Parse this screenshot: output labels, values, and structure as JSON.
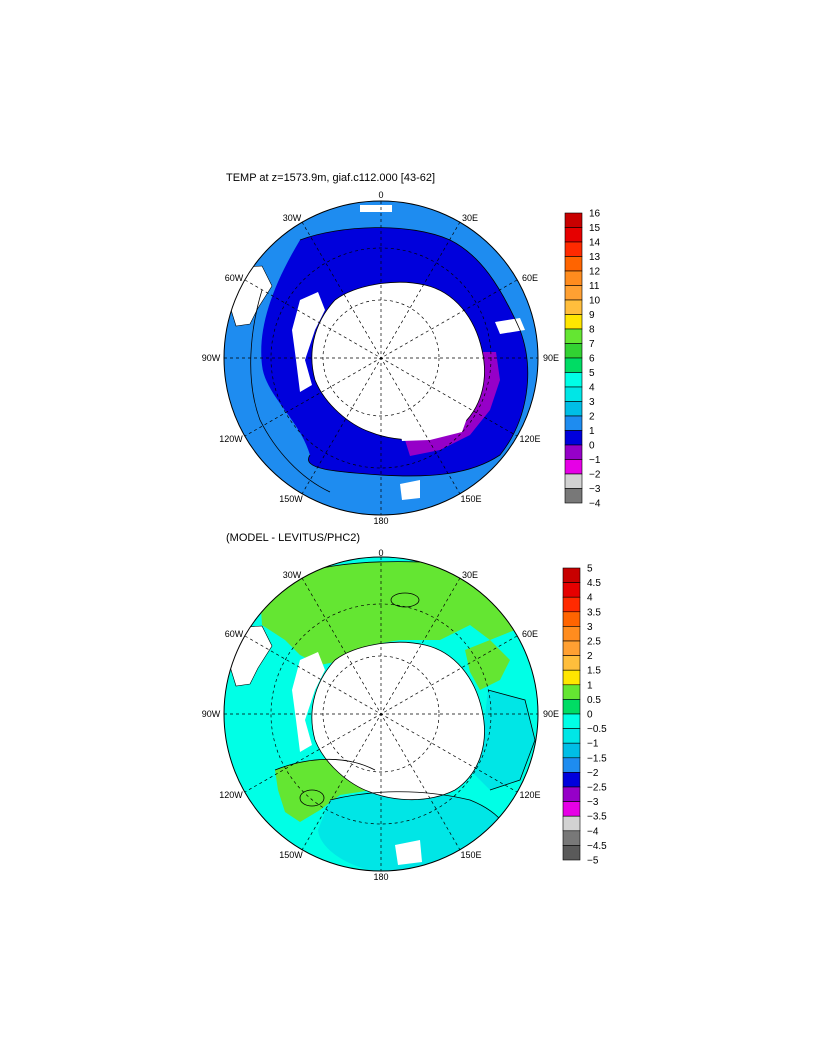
{
  "panels": [
    {
      "title": "TEMP at z=1573.9m, giaf.c112.000 [43-62]",
      "lon_labels": {
        "n": "0",
        "nne": "30E",
        "ene": "60E",
        "e": "90E",
        "ese": "120E",
        "sse": "150E",
        "s": "180",
        "ssw": "150W",
        "wsw": "120W",
        "w": "90W",
        "wnw": "60W",
        "nnw": "30W"
      },
      "colorbar": {
        "labels": [
          "16",
          "15",
          "14",
          "13",
          "12",
          "11",
          "10",
          "9",
          "8",
          "7",
          "6",
          "5",
          "4",
          "3",
          "2",
          "1",
          "0",
          "−1",
          "−2",
          "−3",
          "−4"
        ],
        "colors": [
          "#c80000",
          "#e60000",
          "#ff2a00",
          "#ff6400",
          "#ff8c1e",
          "#ffa032",
          "#ffbe3c",
          "#ffe600",
          "#64e632",
          "#32d232",
          "#00dc64",
          "#00ffe6",
          "#00e6e6",
          "#00bee6",
          "#1e8cf0",
          "#0000dc",
          "#9600c8",
          "#e600e6",
          "#d2d2d2",
          "#787878"
        ]
      }
    },
    {
      "title": "(MODEL - LEVITUS/PHC2)",
      "lon_labels": {
        "n": "0",
        "nne": "30E",
        "ene": "60E",
        "e": "90E",
        "ese": "120E",
        "sse": "150E",
        "s": "180",
        "ssw": "150W",
        "wsw": "120W",
        "w": "90W",
        "wnw": "60W",
        "nnw": "30W"
      },
      "colorbar": {
        "labels": [
          "5",
          "4.5",
          "4",
          "3.5",
          "3",
          "2.5",
          "2",
          "1.5",
          "1",
          "0.5",
          "0",
          "−0.5",
          "−1",
          "−1.5",
          "−2",
          "−2.5",
          "−3",
          "−3.5",
          "−4",
          "−4.5",
          "−5"
        ],
        "colors": [
          "#c80000",
          "#e60000",
          "#ff2a00",
          "#ff6400",
          "#ff8c1e",
          "#ffa032",
          "#ffbe3c",
          "#ffe600",
          "#64e632",
          "#00dc64",
          "#00ffe6",
          "#00e6e6",
          "#00bee6",
          "#1e8cf0",
          "#0000dc",
          "#9600c8",
          "#e600e6",
          "#d2d2d2",
          "#787878",
          "#5a5a5a"
        ]
      }
    }
  ],
  "colors": {
    "top_outer": "#1e8cf0",
    "top_mid": "#0000dc",
    "top_cold": "#9600c8",
    "bottom_base": "#00ffe6",
    "bottom_warm": "#64e632",
    "bottom_cyan": "#00e6e6",
    "land": "#ffffff",
    "line": "#000000"
  }
}
